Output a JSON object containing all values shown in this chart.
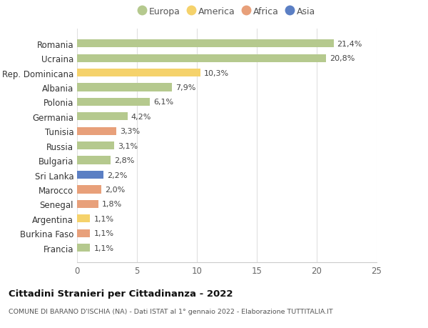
{
  "categories": [
    "Francia",
    "Burkina Faso",
    "Argentina",
    "Senegal",
    "Marocco",
    "Sri Lanka",
    "Bulgaria",
    "Russia",
    "Tunisia",
    "Germania",
    "Polonia",
    "Albania",
    "Rep. Dominicana",
    "Ucraina",
    "Romania"
  ],
  "values": [
    1.1,
    1.1,
    1.1,
    1.8,
    2.0,
    2.2,
    2.8,
    3.1,
    3.3,
    4.2,
    6.1,
    7.9,
    10.3,
    20.8,
    21.4
  ],
  "labels": [
    "1,1%",
    "1,1%",
    "1,1%",
    "1,8%",
    "2,0%",
    "2,2%",
    "2,8%",
    "3,1%",
    "3,3%",
    "4,2%",
    "6,1%",
    "7,9%",
    "10,3%",
    "20,8%",
    "21,4%"
  ],
  "colors": [
    "#b5c98e",
    "#e8a07a",
    "#f5d26b",
    "#e8a07a",
    "#e8a07a",
    "#5b7fc4",
    "#b5c98e",
    "#b5c98e",
    "#e8a07a",
    "#b5c98e",
    "#b5c98e",
    "#b5c98e",
    "#f5d26b",
    "#b5c98e",
    "#b5c98e"
  ],
  "legend": [
    {
      "label": "Europa",
      "color": "#b5c98e"
    },
    {
      "label": "America",
      "color": "#f5d26b"
    },
    {
      "label": "Africa",
      "color": "#e8a07a"
    },
    {
      "label": "Asia",
      "color": "#5b7fc4"
    }
  ],
  "xlim": [
    0,
    25
  ],
  "xticks": [
    0,
    5,
    10,
    15,
    20,
    25
  ],
  "title": "Cittadini Stranieri per Cittadinanza - 2022",
  "subtitle": "COMUNE DI BARANO D'ISCHIA (NA) - Dati ISTAT al 1° gennaio 2022 - Elaborazione TUTTITALIA.IT",
  "bar_height": 0.55,
  "background_color": "#ffffff",
  "grid_color": "#e0e0e0"
}
